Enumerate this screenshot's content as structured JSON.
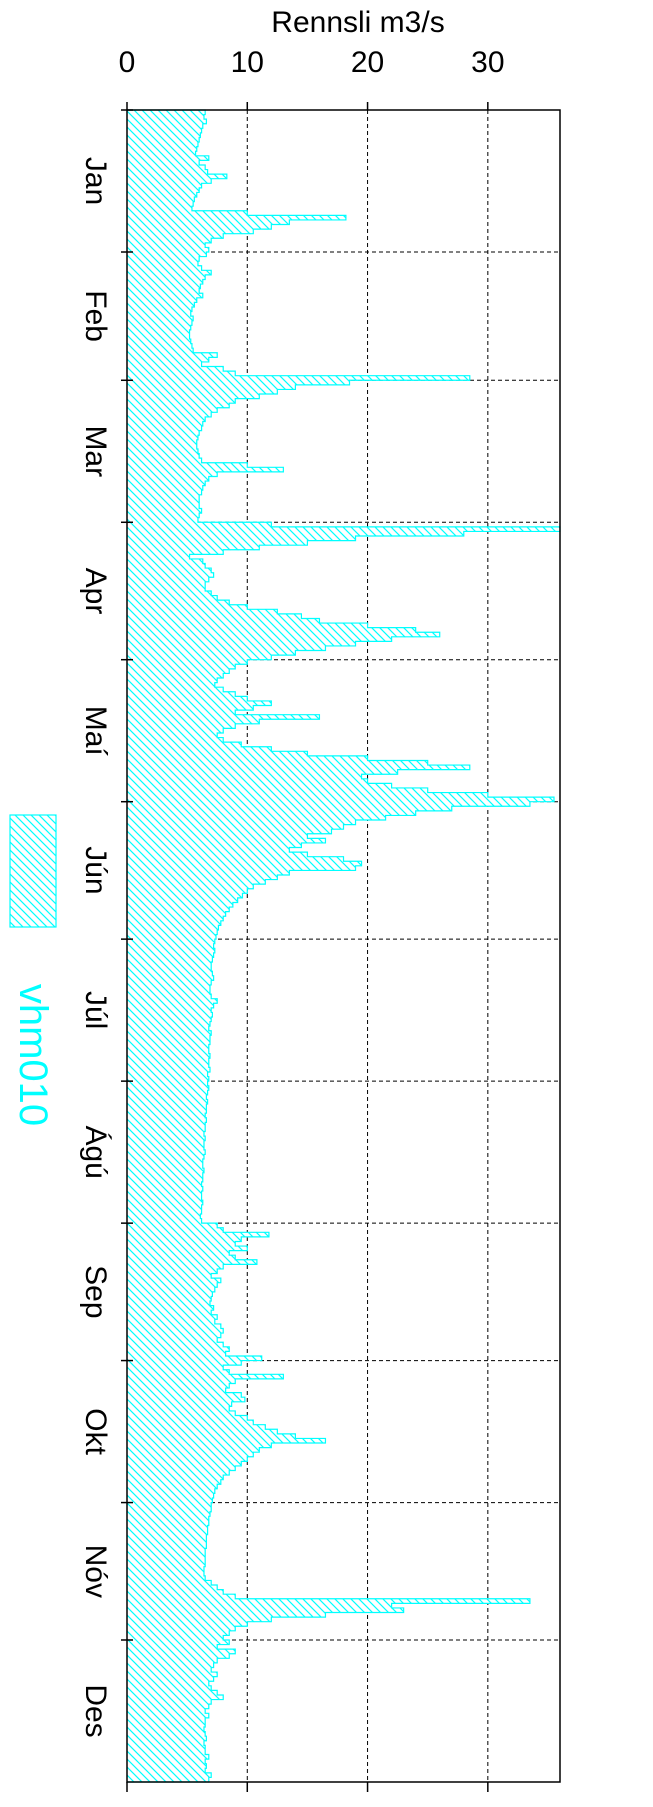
{
  "chart_data": {
    "type": "bar",
    "orientation": "horizontal-rotated",
    "xlabel": "Rennsli  m3/s",
    "xlim": [
      0,
      36
    ],
    "xticks": [
      0,
      10,
      20,
      30
    ],
    "xtick_labels": [
      "0",
      "10",
      "20",
      "30"
    ],
    "grid": true,
    "months": [
      "Jan",
      "Feb",
      "Mar",
      "Apr",
      "Maí",
      "Jún",
      "Júl",
      "Ágú",
      "Sep",
      "Okt",
      "Nóv",
      "Des"
    ],
    "month_days": [
      31,
      28,
      31,
      30,
      31,
      30,
      31,
      31,
      30,
      31,
      30,
      31
    ],
    "legend_position": "left",
    "series": [
      {
        "name": "vhm010",
        "color": "#00ffff",
        "daily_values": [
          6.5,
          6.4,
          6.6,
          6.3,
          6.2,
          6.1,
          6.0,
          5.9,
          5.8,
          5.7,
          6.8,
          6.0,
          6.5,
          6.7,
          8.3,
          7.0,
          6.2,
          6.0,
          5.8,
          5.6,
          5.5,
          5.4,
          10.0,
          18.2,
          13.5,
          12.0,
          10.5,
          8.0,
          7.0,
          6.5,
          6.8,
          6.6,
          6.0,
          5.9,
          6.2,
          7.0,
          6.5,
          6.3,
          6.1,
          6.0,
          6.3,
          5.8,
          5.6,
          5.4,
          5.3,
          5.5,
          5.4,
          5.3,
          5.2,
          5.2,
          5.3,
          5.4,
          5.5,
          7.5,
          6.8,
          6.2,
          8.0,
          9.0,
          28.5,
          18.5,
          14.0,
          12.5,
          11.0,
          9.0,
          8.5,
          7.5,
          7.0,
          6.5,
          6.3,
          6.2,
          6.0,
          5.9,
          5.8,
          5.8,
          5.9,
          6.0,
          6.2,
          10.0,
          13.0,
          7.5,
          6.8,
          6.5,
          6.3,
          6.2,
          6.0,
          6.0,
          6.0,
          6.2,
          6.0,
          5.9,
          12.0,
          36.0,
          28.0,
          19.0,
          15.0,
          11.0,
          8.0,
          5.2,
          6.3,
          6.5,
          7.0,
          7.2,
          6.8,
          6.5,
          6.5,
          7.0,
          7.5,
          8.5,
          10.0,
          12.5,
          14.5,
          16.0,
          20.0,
          24.0,
          26.0,
          22.0,
          19.0,
          16.5,
          14.0,
          12.0,
          10.0,
          9.0,
          8.5,
          8.0,
          7.5,
          7.3,
          8.0,
          9.0,
          10.0,
          12.0,
          10.5,
          9.0,
          16.0,
          11.0,
          9.0,
          8.0,
          7.5,
          8.0,
          9.5,
          12.0,
          15.0,
          20.0,
          25.0,
          28.5,
          22.5,
          19.5,
          20.0,
          22.0,
          25.0,
          30.0,
          35.5,
          33.5,
          27.0,
          24.0,
          21.5,
          19.0,
          18.0,
          17.0,
          15.0,
          16.5,
          14.5,
          13.5,
          15.0,
          18.0,
          19.5,
          19.0,
          13.5,
          12.5,
          11.5,
          10.5,
          10.0,
          9.6,
          9.2,
          8.8,
          8.5,
          8.2,
          8.0,
          7.8,
          7.6,
          7.5,
          7.4,
          7.3,
          7.2,
          7.3,
          7.2,
          7.1,
          7.0,
          7.0,
          7.1,
          7.2,
          7.0,
          6.9,
          6.9,
          7.0,
          7.5,
          7.2,
          7.0,
          7.1,
          7.0,
          6.9,
          6.8,
          7.0,
          6.9,
          6.9,
          6.8,
          6.8,
          6.9,
          6.8,
          6.8,
          6.9,
          6.7,
          6.8,
          6.7,
          6.8,
          6.7,
          6.6,
          6.7,
          6.6,
          6.6,
          6.5,
          6.6,
          6.5,
          6.5,
          6.4,
          6.5,
          6.4,
          6.4,
          6.5,
          6.4,
          6.3,
          6.3,
          6.4,
          6.3,
          6.3,
          6.2,
          6.3,
          6.2,
          6.2,
          6.3,
          6.2,
          6.2,
          6.1,
          6.2,
          7.5,
          8.0,
          11.8,
          9.5,
          9.0,
          10.0,
          8.5,
          9.0,
          10.8,
          8.0,
          7.5,
          7.0,
          7.8,
          7.5,
          7.3,
          7.1,
          7.0,
          6.9,
          7.2,
          7.0,
          7.5,
          7.3,
          7.8,
          8.0,
          7.8,
          7.5,
          8.0,
          8.5,
          8.2,
          11.2,
          9.5,
          8.0,
          8.5,
          13.0,
          9.0,
          8.5,
          8.2,
          9.5,
          9.8,
          8.7,
          8.5,
          9.0,
          10.0,
          10.5,
          11.5,
          12.5,
          14.0,
          16.5,
          12.0,
          11.0,
          10.5,
          10.0,
          9.5,
          9.0,
          8.5,
          8.0,
          7.8,
          7.5,
          7.3,
          7.2,
          7.1,
          7.0,
          7.0,
          6.9,
          6.8,
          6.8,
          6.7,
          6.7,
          6.6,
          6.6,
          6.6,
          6.5,
          6.5,
          6.5,
          6.5,
          6.4,
          6.4,
          6.5,
          7.0,
          7.5,
          8.0,
          9.0,
          33.5,
          22.0,
          23.0,
          16.5,
          12.0,
          10.0,
          9.0,
          8.5,
          8.0,
          8.5,
          7.5,
          9.0,
          8.5,
          7.5,
          7.2,
          7.0,
          7.5,
          7.2,
          6.8,
          7.0,
          7.5,
          8.0,
          7.0,
          6.8,
          6.5,
          6.8,
          6.5,
          6.5,
          6.4,
          6.5,
          6.6,
          6.4,
          6.5,
          6.5,
          6.8,
          6.5,
          6.6,
          6.5,
          7.0,
          6.8
        ]
      }
    ]
  }
}
